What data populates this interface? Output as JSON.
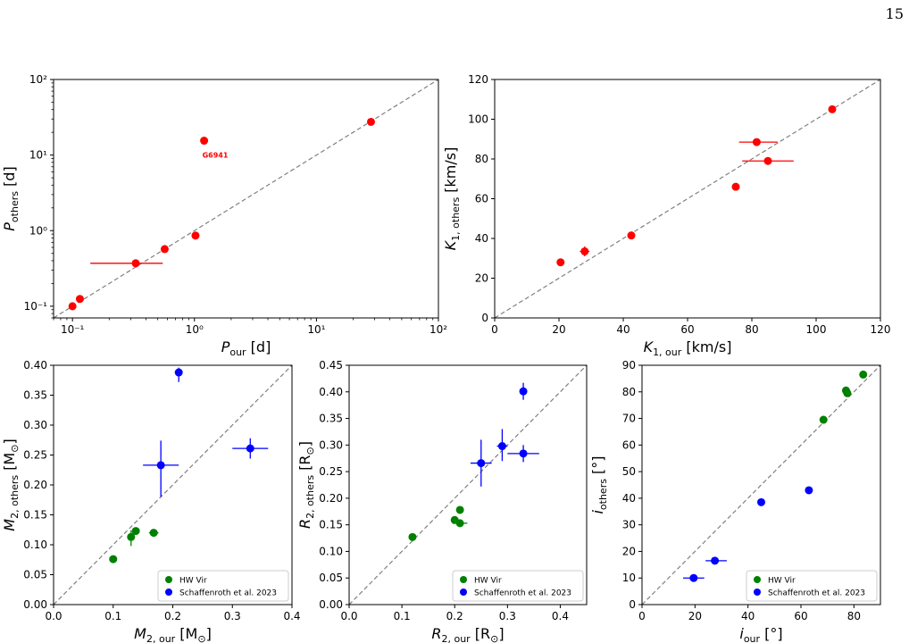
{
  "page_number": "15",
  "colors": {
    "red": "#ff0000",
    "green": "#008000",
    "blue": "#0000ff",
    "diag": "#808080"
  },
  "chart_data": [
    {
      "id": "P",
      "type": "scatter",
      "xscale": "log",
      "yscale": "log",
      "xlim": [
        0.07,
        100
      ],
      "ylim": [
        0.07,
        100
      ],
      "xticks": [
        0.1,
        1,
        10,
        100
      ],
      "xticklabels": [
        "10⁻¹",
        "10⁰",
        "10¹",
        "10²"
      ],
      "yticks": [
        0.1,
        1,
        10,
        100
      ],
      "yticklabels": [
        "10⁻¹",
        "10⁰",
        "10¹",
        "10²"
      ],
      "xlabel": {
        "main": "P",
        "sub": "our",
        "unit": " [d]"
      },
      "ylabel": {
        "main": "P",
        "sub": "others",
        "unit": " [d]"
      },
      "diagonal": true,
      "series": [
        {
          "color": "red",
          "points": [
            {
              "x": 0.1,
              "y": 0.1
            },
            {
              "x": 0.115,
              "y": 0.125
            },
            {
              "x": 0.33,
              "y": 0.37,
              "xerr": [
                0.14,
                0.55
              ]
            },
            {
              "x": 0.57,
              "y": 0.57
            },
            {
              "x": 1.02,
              "y": 0.86
            },
            {
              "x": 1.2,
              "y": 15.5
            },
            {
              "x": 28,
              "y": 27.5
            }
          ]
        }
      ],
      "annotations": [
        {
          "text": "G6941",
          "x": 1.2,
          "y": 15.5
        }
      ]
    },
    {
      "id": "K",
      "type": "scatter",
      "xlim": [
        0,
        120
      ],
      "ylim": [
        0,
        120
      ],
      "xticks": [
        0,
        20,
        40,
        60,
        80,
        100,
        120
      ],
      "xticklabels": [
        "0",
        "20",
        "40",
        "60",
        "80",
        "100",
        "120"
      ],
      "yticks": [
        0,
        20,
        40,
        60,
        80,
        100,
        120
      ],
      "yticklabels": [
        "0",
        "20",
        "40",
        "60",
        "80",
        "100",
        "120"
      ],
      "xlabel": {
        "main": "K",
        "sub": "1, our",
        "unit": " [km/s]"
      },
      "ylabel": {
        "main": "K",
        "sub": "1, others",
        "unit": " [km/s]"
      },
      "diagonal": true,
      "series": [
        {
          "color": "red",
          "points": [
            {
              "x": 20.5,
              "y": 28
            },
            {
              "x": 28,
              "y": 33.5,
              "xerr": [
                26.5,
                29.5
              ],
              "yerr": [
                31,
                36
              ]
            },
            {
              "x": 42.5,
              "y": 41.5
            },
            {
              "x": 75,
              "y": 66
            },
            {
              "x": 81.5,
              "y": 88.5,
              "xerr": [
                76,
                88
              ]
            },
            {
              "x": 85,
              "y": 79,
              "xerr": [
                77,
                93
              ]
            },
            {
              "x": 105,
              "y": 105
            }
          ]
        }
      ],
      "annotations": []
    },
    {
      "id": "M2",
      "type": "scatter",
      "xlim": [
        0,
        0.4
      ],
      "ylim": [
        0,
        0.4
      ],
      "xticks": [
        0,
        0.1,
        0.2,
        0.3,
        0.4
      ],
      "xticklabels": [
        "0.0",
        "0.1",
        "0.2",
        "0.3",
        "0.4"
      ],
      "yticks": [
        0,
        0.05,
        0.1,
        0.15,
        0.2,
        0.25,
        0.3,
        0.35,
        0.4
      ],
      "yticklabels": [
        "0.00",
        "0.05",
        "0.10",
        "0.15",
        "0.20",
        "0.25",
        "0.30",
        "0.35",
        "0.40"
      ],
      "xlabel": {
        "main": "M",
        "sub": "2, our",
        "unit": " [M",
        "sym": "⊙",
        "close": "]"
      },
      "ylabel": {
        "main": "M",
        "sub": "2, others",
        "unit": " [M",
        "sym": "⊙",
        "close": "]"
      },
      "diagonal": true,
      "series": [
        {
          "name": "HW Vir",
          "color": "green",
          "points": [
            {
              "x": 0.1,
              "y": 0.076
            },
            {
              "x": 0.13,
              "y": 0.113,
              "yerr": [
                0.098,
                0.124
              ]
            },
            {
              "x": 0.138,
              "y": 0.123
            },
            {
              "x": 0.168,
              "y": 0.12,
              "xerr": [
                0.16,
                0.176
              ]
            }
          ]
        },
        {
          "name": "Schaffenroth et al. 2023",
          "color": "blue",
          "points": [
            {
              "x": 0.21,
              "y": 0.388,
              "yerr": [
                0.372,
                0.396
              ],
              "xerr": [
                0.204,
                0.216
              ]
            },
            {
              "x": 0.18,
              "y": 0.233,
              "xerr": [
                0.15,
                0.21
              ],
              "yerr": [
                0.18,
                0.274
              ]
            },
            {
              "x": 0.33,
              "y": 0.261,
              "xerr": [
                0.3,
                0.36
              ],
              "yerr": [
                0.244,
                0.278
              ]
            }
          ]
        }
      ],
      "legend": {
        "placement": "lower right"
      },
      "annotations": []
    },
    {
      "id": "R2",
      "type": "scatter",
      "xlim": [
        0,
        0.45
      ],
      "ylim": [
        0,
        0.45
      ],
      "xticks": [
        0,
        0.1,
        0.2,
        0.3,
        0.4
      ],
      "xticklabels": [
        "0.0",
        "0.1",
        "0.2",
        "0.3",
        "0.4"
      ],
      "yticks": [
        0,
        0.05,
        0.1,
        0.15,
        0.2,
        0.25,
        0.3,
        0.35,
        0.4,
        0.45
      ],
      "yticklabels": [
        "0.00",
        "0.05",
        "0.10",
        "0.15",
        "0.20",
        "0.25",
        "0.30",
        "0.35",
        "0.40",
        "0.45"
      ],
      "xlabel": {
        "main": "R",
        "sub": "2, our",
        "unit": " [R",
        "sym": "⊙",
        "close": "]"
      },
      "ylabel": {
        "main": "R",
        "sub": "2, others",
        "unit": " [R",
        "sym": "⊙",
        "close": "]"
      },
      "diagonal": true,
      "series": [
        {
          "name": "HW Vir",
          "color": "green",
          "points": [
            {
              "x": 0.12,
              "y": 0.127
            },
            {
              "x": 0.2,
              "y": 0.159
            },
            {
              "x": 0.21,
              "y": 0.178
            },
            {
              "x": 0.21,
              "y": 0.153,
              "xerr": [
                0.196,
                0.224
              ]
            }
          ]
        },
        {
          "name": "Schaffenroth et al. 2023",
          "color": "blue",
          "points": [
            {
              "x": 0.25,
              "y": 0.266,
              "xerr": [
                0.23,
                0.27
              ],
              "yerr": [
                0.222,
                0.31
              ]
            },
            {
              "x": 0.29,
              "y": 0.298,
              "xerr": [
                0.28,
                0.3
              ],
              "yerr": [
                0.27,
                0.33
              ]
            },
            {
              "x": 0.33,
              "y": 0.401,
              "yerr": [
                0.385,
                0.417
              ]
            },
            {
              "x": 0.33,
              "y": 0.284,
              "xerr": [
                0.3,
                0.36
              ],
              "yerr": [
                0.268,
                0.3
              ]
            }
          ]
        }
      ],
      "legend": {
        "placement": "lower right"
      },
      "annotations": []
    },
    {
      "id": "i",
      "type": "scatter",
      "xlim": [
        0,
        90
      ],
      "ylim": [
        0,
        90
      ],
      "xticks": [
        0,
        20,
        40,
        60,
        80
      ],
      "xticklabels": [
        "0",
        "20",
        "40",
        "60",
        "80"
      ],
      "yticks": [
        0,
        10,
        20,
        30,
        40,
        50,
        60,
        70,
        80,
        90
      ],
      "yticklabels": [
        "0",
        "10",
        "20",
        "30",
        "40",
        "50",
        "60",
        "70",
        "80",
        "90"
      ],
      "xlabel": {
        "main": "i",
        "sub": "our",
        "unit": " [°]"
      },
      "ylabel": {
        "main": "i",
        "sub": "others",
        "unit": " [°]"
      },
      "diagonal": true,
      "series": [
        {
          "name": "HW Vir",
          "color": "green",
          "points": [
            {
              "x": 68.5,
              "y": 69.5
            },
            {
              "x": 77,
              "y": 80.5
            },
            {
              "x": 77.5,
              "y": 79.5
            },
            {
              "x": 83.5,
              "y": 86.5
            }
          ]
        },
        {
          "name": "Schaffenroth et al. 2023",
          "color": "blue",
          "points": [
            {
              "x": 19.5,
              "y": 10,
              "xerr": [
                15.5,
                23.5
              ]
            },
            {
              "x": 27.5,
              "y": 16.5,
              "xerr": [
                24,
                32
              ]
            },
            {
              "x": 45,
              "y": 38.5,
              "xerr": [
                44,
                46
              ]
            },
            {
              "x": 63,
              "y": 43
            }
          ]
        }
      ],
      "legend": {
        "placement": "lower right"
      },
      "annotations": []
    }
  ]
}
